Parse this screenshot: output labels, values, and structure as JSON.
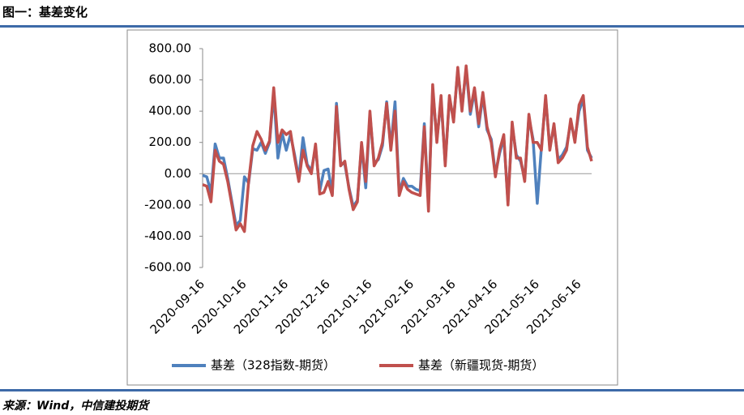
{
  "header": {
    "title": "图一：基差变化"
  },
  "footer": {
    "source": "来源：Wind，中信建投期货"
  },
  "chart_data": {
    "type": "line",
    "categories": [
      "2020-09-16",
      null,
      null,
      null,
      null,
      null,
      null,
      null,
      null,
      null,
      "2020-10-16",
      null,
      null,
      null,
      null,
      null,
      null,
      null,
      null,
      null,
      "2020-11-16",
      null,
      null,
      null,
      null,
      null,
      null,
      null,
      null,
      null,
      "2020-12-16",
      null,
      null,
      null,
      null,
      null,
      null,
      null,
      null,
      null,
      "2021-01-16",
      null,
      null,
      null,
      null,
      null,
      null,
      null,
      null,
      null,
      "2021-02-16",
      null,
      null,
      null,
      null,
      null,
      null,
      null,
      null,
      null,
      "2021-03-16",
      null,
      null,
      null,
      null,
      null,
      null,
      null,
      null,
      null,
      "2021-04-16",
      null,
      null,
      null,
      null,
      null,
      null,
      null,
      null,
      null,
      "2021-05-16",
      null,
      null,
      null,
      null,
      null,
      null,
      null,
      null,
      null,
      "2021-06-16",
      null,
      null,
      null
    ],
    "series": [
      {
        "name": "基差（328指数-期货）",
        "color": "#4f81bd",
        "values": [
          -10,
          -20,
          -120,
          190,
          100,
          100,
          -30,
          -180,
          -330,
          -300,
          -20,
          -60,
          160,
          150,
          200,
          130,
          200,
          520,
          100,
          260,
          150,
          250,
          120,
          -30,
          230,
          60,
          20,
          170,
          -110,
          20,
          30,
          -130,
          450,
          70,
          60,
          -90,
          -210,
          -170,
          180,
          -90,
          380,
          70,
          90,
          180,
          460,
          170,
          460,
          -120,
          -30,
          -80,
          -80,
          -100,
          -110,
          320,
          -200,
          540,
          220,
          470,
          70,
          480,
          350,
          660,
          420,
          670,
          380,
          530,
          300,
          500,
          280,
          220,
          0,
          130,
          230,
          -180,
          310,
          120,
          80,
          -30,
          360,
          220,
          -190,
          170,
          480,
          170,
          300,
          90,
          120,
          170,
          330,
          220,
          400,
          480,
          150,
          100
        ]
      },
      {
        "name": "基差（新疆现货-期货）",
        "color": "#c0504d",
        "values": [
          -70,
          -80,
          -180,
          150,
          80,
          60,
          -50,
          -200,
          -360,
          -320,
          -370,
          -50,
          180,
          270,
          220,
          150,
          210,
          550,
          200,
          280,
          250,
          270,
          100,
          -50,
          150,
          50,
          0,
          190,
          -130,
          -120,
          -50,
          -140,
          430,
          50,
          80,
          -100,
          -230,
          -180,
          200,
          -50,
          400,
          50,
          100,
          200,
          450,
          150,
          400,
          -140,
          -50,
          -100,
          -120,
          -130,
          -140,
          300,
          -240,
          570,
          200,
          500,
          50,
          500,
          330,
          680,
          400,
          690,
          400,
          550,
          320,
          520,
          300,
          200,
          -20,
          150,
          250,
          -200,
          330,
          100,
          100,
          -50,
          380,
          200,
          200,
          150,
          500,
          150,
          320,
          70,
          100,
          150,
          350,
          200,
          440,
          500,
          170,
          80
        ]
      }
    ],
    "ylim": [
      -600,
      800
    ],
    "yticks": [
      {
        "value": -600,
        "label": "-600.00"
      },
      {
        "value": -400,
        "label": "-400.00"
      },
      {
        "value": -200,
        "label": "-200.00"
      },
      {
        "value": 0,
        "label": "0.00"
      },
      {
        "value": 200,
        "label": "200.00"
      },
      {
        "value": 400,
        "label": "400.00"
      },
      {
        "value": 600,
        "label": "600.00"
      },
      {
        "value": 800,
        "label": "800.00"
      }
    ],
    "legend": "bottom"
  }
}
